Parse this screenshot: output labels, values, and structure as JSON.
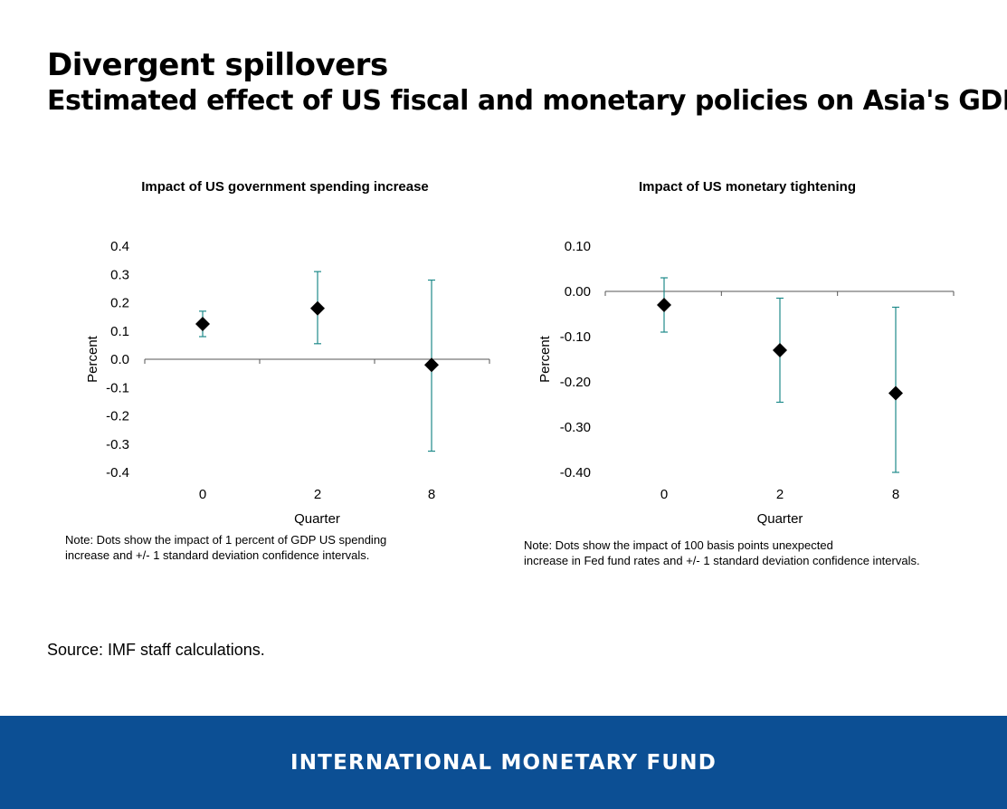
{
  "header": {
    "title": "Divergent spillovers",
    "subtitle": "Estimated effect of US fiscal and monetary policies on Asia's GDP."
  },
  "colors": {
    "error_bar": "#1f8a8a",
    "marker": "#000000",
    "footer_bg": "#0c4f94"
  },
  "chart_data": [
    {
      "type": "scatter",
      "title": "Impact of US government spending increase",
      "xlabel": "Quarter",
      "ylabel": "Percent",
      "categories": [
        "0",
        "2",
        "8"
      ],
      "values": [
        0.125,
        0.18,
        -0.02
      ],
      "lower": [
        0.08,
        0.055,
        -0.325
      ],
      "upper": [
        0.17,
        0.31,
        0.28
      ],
      "ylim": [
        -0.4,
        0.4
      ],
      "yticks": [
        0.4,
        0.3,
        0.2,
        0.1,
        0.0,
        -0.1,
        -0.2,
        -0.3,
        -0.4
      ],
      "ytick_labels": [
        "0.4",
        "0.3",
        "0.2",
        "0.1",
        "0.0",
        "-0.1",
        "-0.2",
        "-0.3",
        "-0.4"
      ],
      "note": [
        "Note: Dots show the impact of 1 percent of GDP US spending",
        "increase and +/- 1 standard deviation confidence intervals."
      ]
    },
    {
      "type": "scatter",
      "title": "Impact of US monetary tightening",
      "xlabel": "Quarter",
      "ylabel": "Percent",
      "categories": [
        "0",
        "2",
        "8"
      ],
      "values": [
        -0.03,
        -0.13,
        -0.225
      ],
      "lower": [
        -0.09,
        -0.245,
        -0.4
      ],
      "upper": [
        0.03,
        -0.015,
        -0.035
      ],
      "ylim": [
        -0.4,
        0.1
      ],
      "yticks": [
        0.1,
        0.0,
        -0.1,
        -0.2,
        -0.3,
        -0.4
      ],
      "ytick_labels": [
        "0.10",
        "0.00",
        "-0.10",
        "-0.20",
        "-0.30",
        "-0.40"
      ],
      "note": [
        "Note: Dots show the impact of 100 basis points unexpected",
        "increase in Fed fund rates and +/- 1 standard deviation confidence intervals."
      ]
    }
  ],
  "source": "Source: IMF staff calculations.",
  "footer": {
    "label": "INTERNATIONAL MONETARY FUND"
  }
}
